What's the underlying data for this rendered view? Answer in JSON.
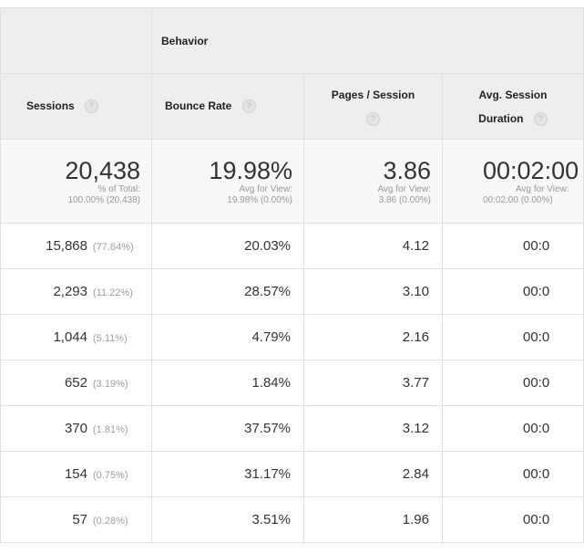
{
  "header": {
    "group_label": "Behavior",
    "columns": [
      {
        "label": "Sessions"
      },
      {
        "label": "Bounce Rate"
      },
      {
        "label_line1": "Pages / Session"
      },
      {
        "label_line1": "Avg. Session",
        "label_line2": "Duration"
      }
    ],
    "help_glyph": "?"
  },
  "summary": {
    "sessions": {
      "value": "20,438",
      "line1": "% of Total:",
      "line2": "100.00% (20,438)"
    },
    "bounce_rate": {
      "value": "19.98%",
      "line1": "Avg for View:",
      "line2": "19.98% (0.00%)"
    },
    "pages_session": {
      "value": "3.86",
      "line1": "Avg for View:",
      "line2": "3.86 (0.00%)"
    },
    "duration": {
      "value": "00:02:00",
      "line1": "Avg for View:",
      "line2": "00:02:00 (0.00%)"
    }
  },
  "rows": [
    {
      "sessions": "15,868",
      "pct": "(77.64%)",
      "bounce": "20.03%",
      "pages": "4.12",
      "duration": "00:0"
    },
    {
      "sessions": "2,293",
      "pct": "(11.22%)",
      "bounce": "28.57%",
      "pages": "3.10",
      "duration": "00:0"
    },
    {
      "sessions": "1,044",
      "pct": "(5.11%)",
      "bounce": "4.79%",
      "pages": "2.16",
      "duration": "00:0"
    },
    {
      "sessions": "652",
      "pct": "(3.19%)",
      "bounce": "1.84%",
      "pages": "3.77",
      "duration": "00:0"
    },
    {
      "sessions": "370",
      "pct": "(1.81%)",
      "bounce": "37.57%",
      "pages": "3.12",
      "duration": "00:0"
    },
    {
      "sessions": "154",
      "pct": "(0.75%)",
      "bounce": "31.17%",
      "pages": "2.84",
      "duration": "00:0"
    },
    {
      "sessions": "57",
      "pct": "(0.28%)",
      "bounce": "3.51%",
      "pages": "1.96",
      "duration": "00:0"
    }
  ]
}
